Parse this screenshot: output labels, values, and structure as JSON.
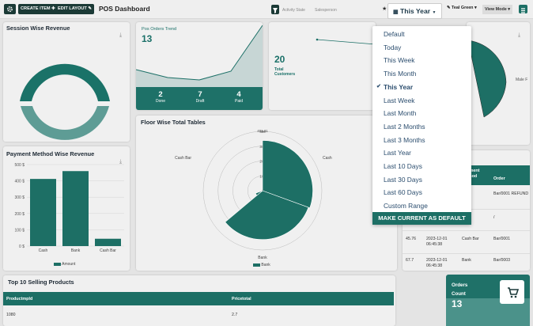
{
  "toolbar": {
    "create_label": "CREATE ITEM",
    "edit_label": "EDIT LAYOUT",
    "title": "POS Dashboard",
    "filter_1": "Activity State",
    "filter_2": "Salesperson",
    "date_label": "This Year",
    "theme_label": "Teal Green",
    "view_label": "View Mode"
  },
  "date_menu": {
    "options": [
      "Default",
      "Today",
      "This Week",
      "This Month",
      "This Year",
      "Last Week",
      "Last Month",
      "Last 2 Months",
      "Last 3 Months",
      "Last Year",
      "Last 10 Days",
      "Last 30 Days",
      "Last 60 Days",
      "Custom Range"
    ],
    "selected": "This Year",
    "default_button": "MAKE CURRENT AS DEFAULT"
  },
  "session_revenue": {
    "title": "Session Wise Revenue"
  },
  "orders_trend": {
    "title": "Pos Orders Trend",
    "value": "13",
    "stats": [
      {
        "value": "2",
        "label": "Done"
      },
      {
        "value": "7",
        "label": "Draft"
      },
      {
        "value": "4",
        "label": "Paid"
      }
    ]
  },
  "customers": {
    "value": "20",
    "label": "Total Customers"
  },
  "pie_card": {
    "label": "Male F"
  },
  "floor_tables": {
    "title": "Floor Wise Total Tables",
    "legend": "Bank"
  },
  "payment_revenue": {
    "title": "Payment Method Wise Revenue",
    "legend": "Amount"
  },
  "chart_data": [
    {
      "type": "bar",
      "title": "Payment Method Wise Revenue",
      "categories": [
        "Cash",
        "Bank",
        "Cash Bar"
      ],
      "values": [
        412,
        460,
        45
      ],
      "y_ticks": [
        "0 $",
        "100 $",
        "200 $",
        "300 $",
        "400 $",
        "500 $"
      ],
      "ylim": [
        0,
        500
      ],
      "legend": "Amount"
    },
    {
      "type": "pie",
      "title": "Floor Wise Total Tables",
      "categories": [
        "Cash Bar",
        "Cash",
        "Bank"
      ],
      "r_ticks": [
        "0",
        "100",
        "200",
        "300",
        "400"
      ],
      "r_max_label": "401.21",
      "legend": "Bank",
      "segments": [
        {
          "start": 0,
          "end": 110,
          "value": 340
        },
        {
          "start": 110,
          "end": 230,
          "value": 330
        },
        {
          "start": 230,
          "end": 250,
          "value": 50
        }
      ]
    }
  ],
  "orders_table": {
    "headers": [
      "Payment Method",
      "Order"
    ],
    "rows": [
      {
        "amount": "",
        "date": "",
        "method": "",
        "order": "Bar/0001 REFUND"
      },
      {
        "amount": "",
        "date": "",
        "method": "",
        "order": "/"
      },
      {
        "amount": "45.76",
        "date": "2023-12-01 06:45:38",
        "method": "Cash Bar",
        "order": "Bar/0001"
      },
      {
        "amount": "67.7",
        "date": "2023-12-01 06:45:38",
        "method": "Bank",
        "order": "Bar/0003"
      }
    ]
  },
  "top_products": {
    "title": "Top 10 Selling Products",
    "headers": [
      "Productmpld",
      "Pricetotal"
    ],
    "rows": [
      {
        "product": "1080",
        "price": "2.7"
      }
    ]
  },
  "orders_count": {
    "label": "Orders Count",
    "value": "13"
  }
}
